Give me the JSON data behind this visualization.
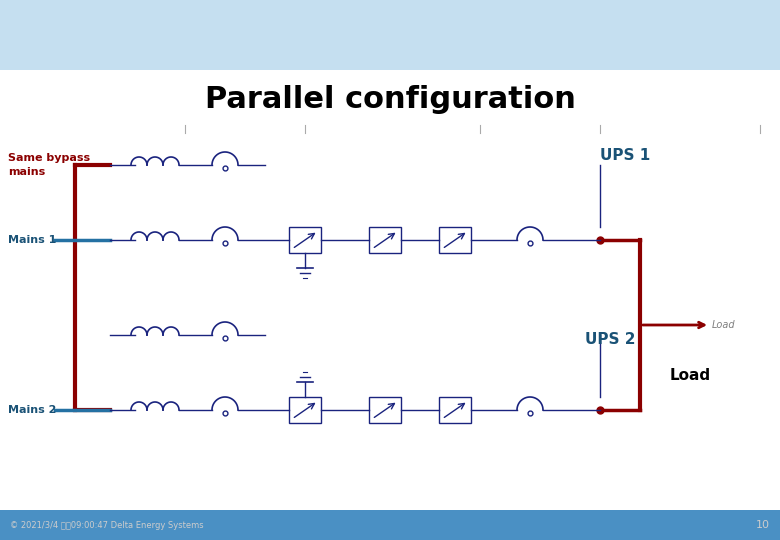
{
  "title": "Parallel configuration",
  "title_fontsize": 22,
  "title_fontweight": "bold",
  "bg_color": "#ffffff",
  "header_bg_top": "#d6eaf8",
  "header_bg_bottom": "#aed6f1",
  "footer_bg": "#5dade2",
  "label_same_bypass": "Same bypass",
  "label_mains": "mains",
  "label_mains1": "Mains 1",
  "label_mains2": "Mains 2",
  "label_ups1": "UPS 1",
  "label_ups2": "UPS 2",
  "label_load": "Load",
  "label_load_arrow": "Load",
  "copyright": "© 2021/3/4 上卉09:00:47 Delta Energy Systems",
  "page_number": "10",
  "dark_red": "#8b0000",
  "blue_label": "#1a5276",
  "sym_color": "#1a237e",
  "line_color": "#1a237e"
}
